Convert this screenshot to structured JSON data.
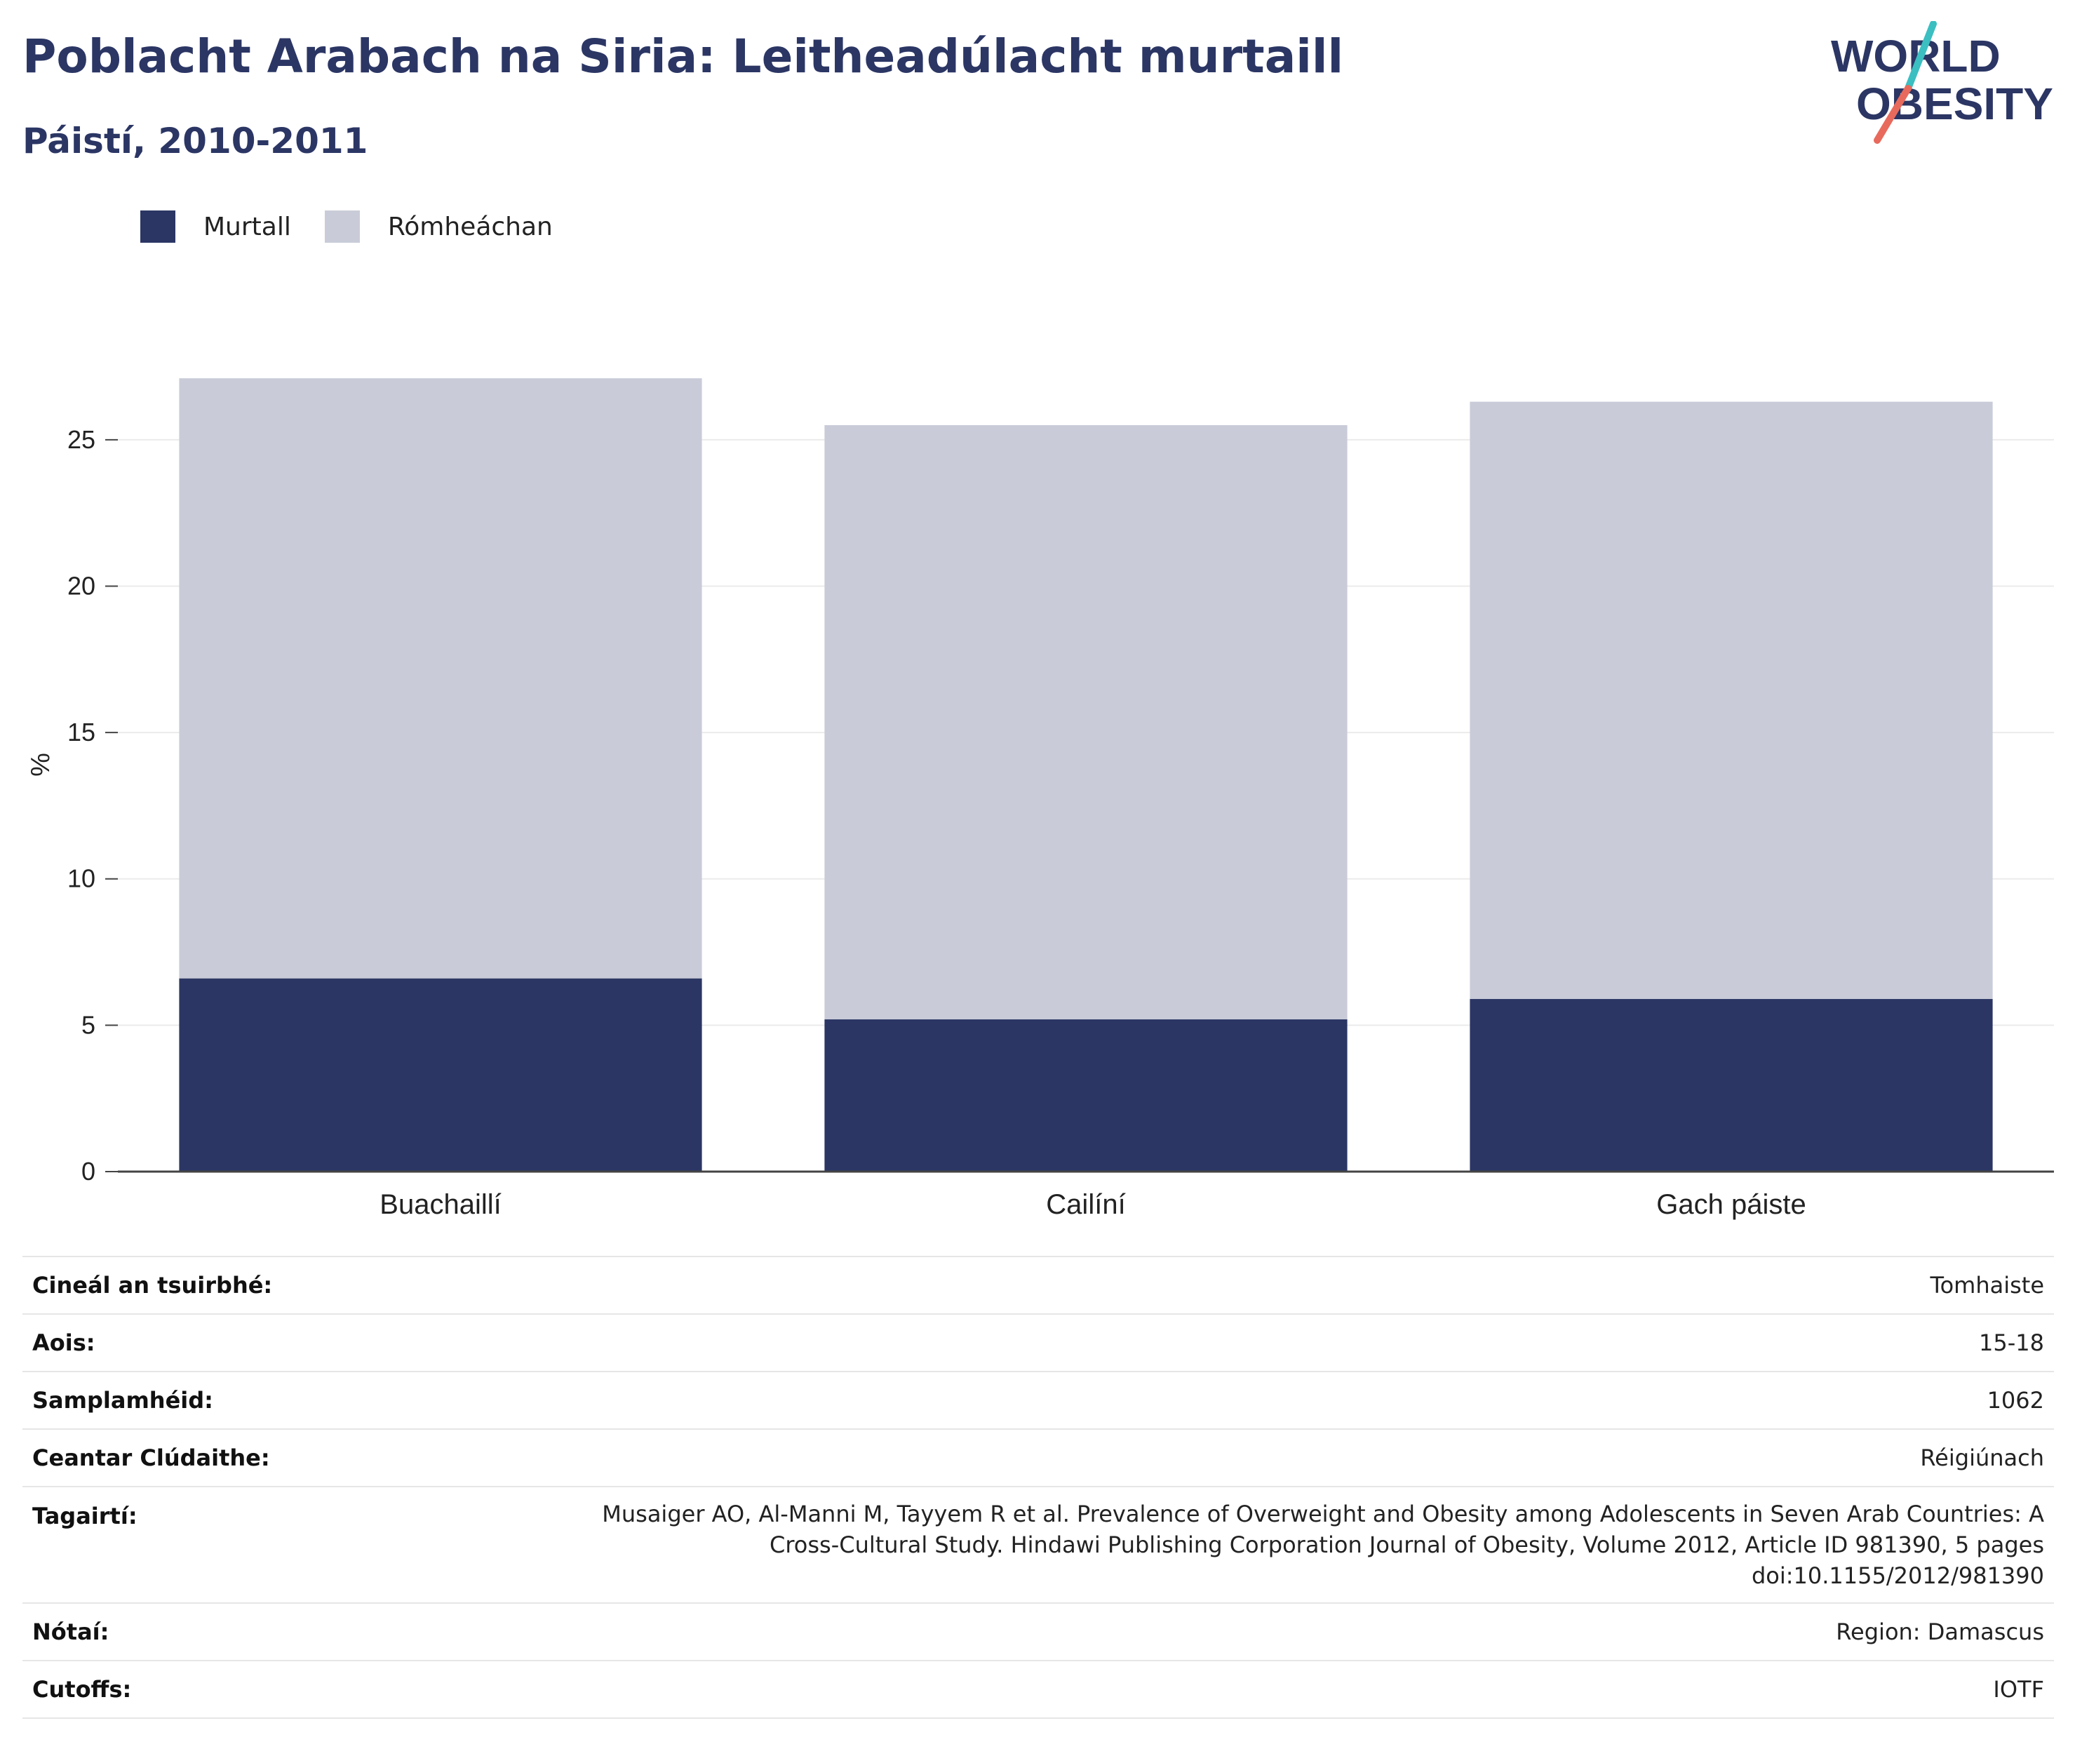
{
  "header": {
    "title": "Poblacht Arabach na Siria: Leitheadúlacht murtaill",
    "subtitle": "Páistí, 2010-2011"
  },
  "logo": {
    "line1": "WORLD",
    "line2": "OBESITY",
    "text_color": "#2b3664",
    "slash_colors": [
      "#3bbfc1",
      "#e86a5c"
    ]
  },
  "legend": [
    {
      "label": "Murtall",
      "color": "#2b3664"
    },
    {
      "label": "Rómheáchan",
      "color": "#c9ccd8"
    }
  ],
  "chart_data": {
    "type": "bar",
    "stacked": true,
    "categories": [
      "Buachaillí",
      "Cailíní",
      "Gach páiste"
    ],
    "series": [
      {
        "name": "Murtall",
        "values": [
          6.6,
          5.2,
          5.9
        ],
        "color": "#2b3664"
      },
      {
        "name": "Rómheáchan",
        "values": [
          20.5,
          20.3,
          20.4
        ],
        "color": "#c9ccd8"
      }
    ],
    "ylabel": "%",
    "ylim": [
      0,
      27.8
    ],
    "yticks": [
      0,
      5,
      10,
      15,
      20,
      25
    ],
    "grid": true,
    "legend_position": "top-left"
  },
  "info": [
    {
      "label": "Cineál an tsuirbhé:",
      "value": "Tomhaiste"
    },
    {
      "label": "Aois:",
      "value": "15-18"
    },
    {
      "label": "Samplamhéid:",
      "value": "1062"
    },
    {
      "label": "Ceantar Clúdaithe:",
      "value": "Réigiúnach"
    },
    {
      "label": "Tagairtí:",
      "value_lines": [
        "Musaiger AO, Al-Manni M, Tayyem R et al. Prevalence of Overweight and Obesity among Adolescents in Seven Arab Countries: A",
        "Cross-Cultural Study. Hindawi Publishing Corporation Journal of Obesity, Volume 2012, Article ID 981390, 5 pages",
        "doi:10.1155/2012/981390"
      ]
    },
    {
      "label": "Nótaí:",
      "value": "Region: Damascus"
    },
    {
      "label": "Cutoffs:",
      "value": "IOTF"
    }
  ]
}
